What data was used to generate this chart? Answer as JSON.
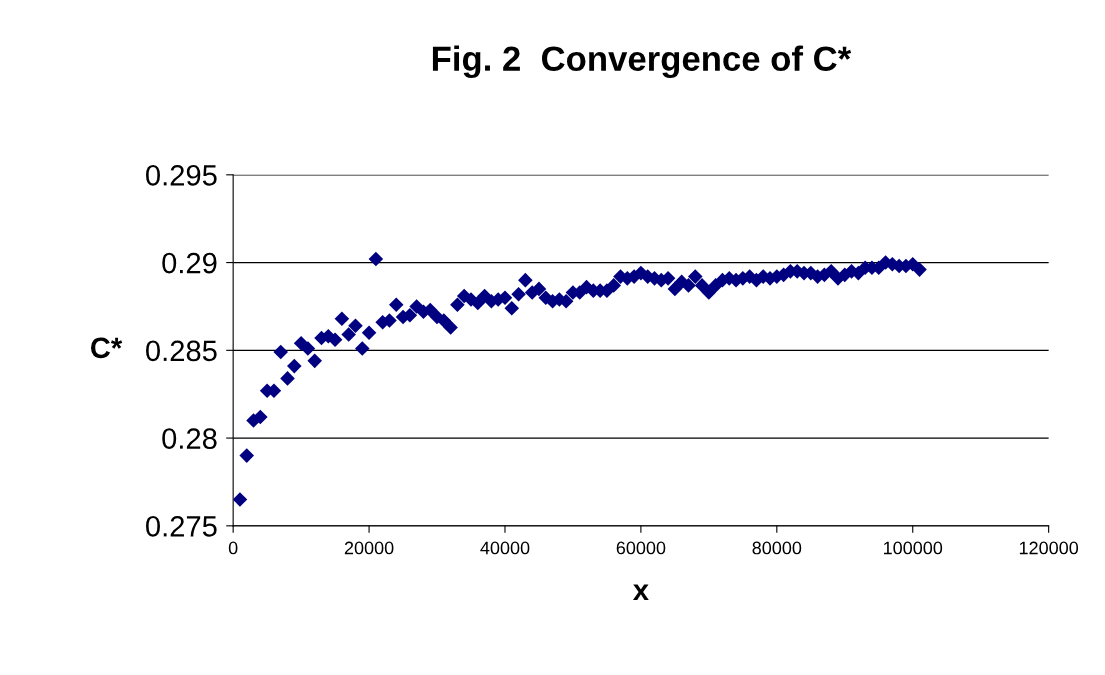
{
  "chart_data": {
    "type": "scatter",
    "title": "Fig. 2  Convergence of C*",
    "xlabel": "x",
    "ylabel": "C*",
    "x": [
      1000,
      2000,
      3000,
      4000,
      5000,
      6000,
      7000,
      8000,
      9000,
      10000,
      11000,
      12000,
      13000,
      14000,
      15000,
      16000,
      17000,
      18000,
      19000,
      20000,
      21000,
      22000,
      23000,
      24000,
      25000,
      26000,
      27000,
      28000,
      29000,
      30000,
      31000,
      32000,
      33000,
      34000,
      35000,
      36000,
      37000,
      38000,
      39000,
      40000,
      41000,
      42000,
      43000,
      44000,
      45000,
      46000,
      47000,
      48000,
      49000,
      50000,
      51000,
      52000,
      53000,
      54000,
      55000,
      56000,
      57000,
      58000,
      59000,
      60000,
      61000,
      62000,
      63000,
      64000,
      65000,
      66000,
      67000,
      68000,
      69000,
      70000,
      71000,
      72000,
      73000,
      74000,
      75000,
      76000,
      77000,
      78000,
      79000,
      80000,
      81000,
      82000,
      83000,
      84000,
      85000,
      86000,
      87000,
      88000,
      89000,
      90000,
      91000,
      92000,
      93000,
      94000,
      95000,
      96000,
      97000,
      98000,
      99000,
      100000,
      101000
    ],
    "values": [
      0.2765,
      0.279,
      0.281,
      0.2812,
      0.2827,
      0.2827,
      0.2849,
      0.2834,
      0.2841,
      0.2854,
      0.2851,
      0.2844,
      0.2857,
      0.2858,
      0.2856,
      0.2868,
      0.2859,
      0.2864,
      0.2851,
      0.286,
      0.2902,
      0.2866,
      0.2867,
      0.2876,
      0.2869,
      0.287,
      0.2875,
      0.2872,
      0.2873,
      0.2869,
      0.2867,
      0.2863,
      0.2876,
      0.2881,
      0.2879,
      0.2877,
      0.2881,
      0.2878,
      0.2879,
      0.288,
      0.2874,
      0.2882,
      0.289,
      0.2883,
      0.2885,
      0.288,
      0.2878,
      0.2879,
      0.2878,
      0.2883,
      0.2883,
      0.2886,
      0.2884,
      0.2884,
      0.2884,
      0.2887,
      0.2892,
      0.2891,
      0.2892,
      0.2894,
      0.2892,
      0.2891,
      0.289,
      0.2891,
      0.2885,
      0.2889,
      0.2887,
      0.2892,
      0.2887,
      0.2883,
      0.2887,
      0.289,
      0.2891,
      0.289,
      0.2891,
      0.2892,
      0.289,
      0.2892,
      0.2891,
      0.2892,
      0.2893,
      0.2895,
      0.2895,
      0.2894,
      0.2894,
      0.2892,
      0.2893,
      0.2895,
      0.2891,
      0.2893,
      0.2895,
      0.2894,
      0.2897,
      0.2897,
      0.2897,
      0.29,
      0.2899,
      0.2898,
      0.2898,
      0.2899,
      0.2896
    ],
    "color": "#000080",
    "marker": "diamond",
    "xlim": [
      0,
      120000
    ],
    "xticks": [
      0,
      20000,
      40000,
      60000,
      80000,
      100000,
      120000
    ],
    "ylim": [
      0.275,
      0.295
    ],
    "yticks": [
      {
        "value": 0.275,
        "label": "0.275"
      },
      {
        "value": 0.28,
        "label": "0.28"
      },
      {
        "value": 0.285,
        "label": "0.285"
      },
      {
        "value": 0.29,
        "label": "0.29"
      },
      {
        "value": 0.295,
        "label": "0.295"
      }
    ],
    "grid": "y",
    "legend": false
  }
}
